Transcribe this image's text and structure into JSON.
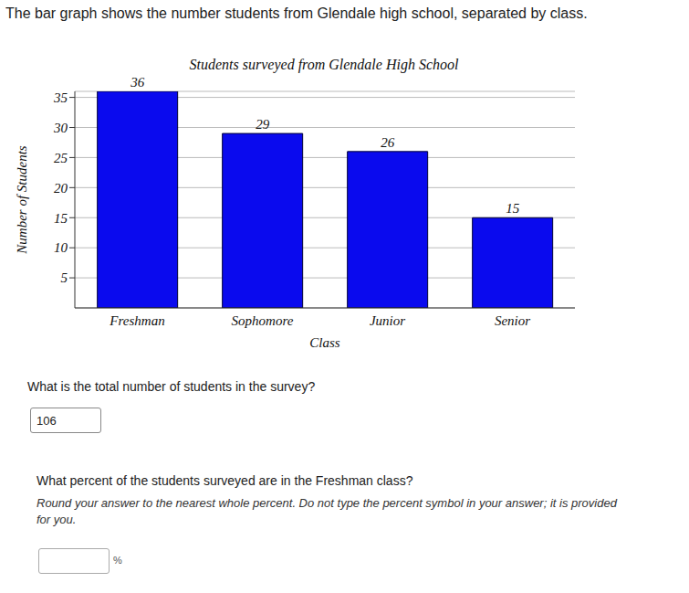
{
  "chart_data": {
    "type": "bar",
    "title": "Students surveyed from Glendale High School",
    "x_label": "Class",
    "y_label": "Number of Students",
    "categories": [
      "Freshman",
      "Sophomore",
      "Junior",
      "Senior"
    ],
    "values": [
      36,
      29,
      26,
      15
    ],
    "color": "#0a0aee",
    "ylim": [
      0,
      36
    ],
    "yticks": [
      5,
      10,
      15,
      20,
      25,
      30,
      35
    ],
    "grid": true,
    "data_labels": true
  },
  "header": {
    "text": "The bar graph shows the number students from Glendale high school, separated by class."
  },
  "questions": [
    {
      "text": "What is the total number of students in the survey?",
      "answer": "106"
    },
    {
      "text": "What percent of the students surveyed are in the Freshman class?",
      "instructions": "Round your answer to the nearest whole percent. Do not type the percent symbol in your answer; it is provided for you.",
      "unit": "%"
    }
  ]
}
